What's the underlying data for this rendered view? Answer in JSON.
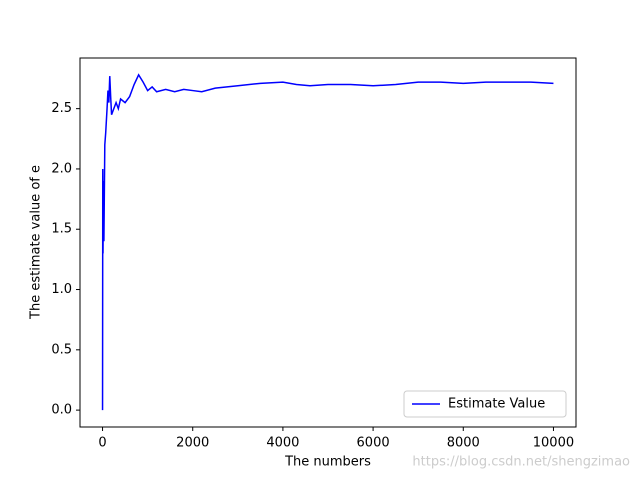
{
  "chart_data": {
    "type": "line",
    "xlabel": "The numbers",
    "ylabel": "The estimate value of e",
    "x": [
      0,
      5,
      10,
      20,
      30,
      50,
      70,
      100,
      120,
      140,
      160,
      180,
      200,
      250,
      300,
      350,
      400,
      500,
      600,
      700,
      800,
      900,
      1000,
      1100,
      1200,
      1400,
      1600,
      1800,
      2000,
      2200,
      2500,
      3000,
      3500,
      4000,
      4300,
      4600,
      5000,
      5500,
      6000,
      6500,
      7000,
      7500,
      8000,
      8500,
      9000,
      9500,
      10000
    ],
    "series": [
      {
        "name": "Estimate Value",
        "color": "#0000ff",
        "values": [
          0,
          2.0,
          1.3,
          1.9,
          1.4,
          2.2,
          2.3,
          2.5,
          2.65,
          2.55,
          2.77,
          2.6,
          2.45,
          2.5,
          2.55,
          2.5,
          2.58,
          2.55,
          2.6,
          2.7,
          2.78,
          2.72,
          2.65,
          2.68,
          2.64,
          2.66,
          2.64,
          2.66,
          2.65,
          2.64,
          2.67,
          2.69,
          2.71,
          2.72,
          2.7,
          2.69,
          2.7,
          2.7,
          2.69,
          2.7,
          2.72,
          2.72,
          2.71,
          2.72,
          2.72,
          2.72,
          2.71
        ]
      }
    ],
    "xlim": [
      -500,
      10500
    ],
    "ylim": [
      -0.14,
      2.92
    ],
    "xticks": [
      0,
      2000,
      4000,
      6000,
      8000,
      10000
    ],
    "yticks": [
      {
        "value": 0,
        "label": "0.0"
      },
      0.5,
      {
        "value": 1,
        "label": "1.0"
      },
      1.5,
      {
        "value": 2,
        "label": "2.0"
      },
      2.5
    ],
    "legend": "lower right",
    "watermark": "https://blog.csdn.net/shengzimao"
  }
}
